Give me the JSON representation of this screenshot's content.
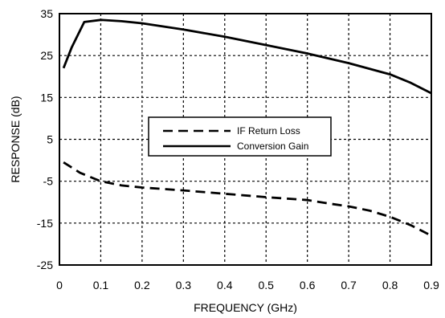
{
  "chart_data": {
    "type": "line",
    "xlabel": "FREQUENCY (GHz)",
    "ylabel": "RESPONSE (dB)",
    "xlim": [
      0,
      0.9
    ],
    "ylim": [
      -25,
      35
    ],
    "xticks": [
      "0",
      "0.1",
      "0.2",
      "0.3",
      "0.4",
      "0.5",
      "0.6",
      "0.7",
      "0.8",
      "0.9"
    ],
    "yticks": [
      "35",
      "25",
      "15",
      "5",
      "-5",
      "-15",
      "-25"
    ],
    "grid": true,
    "legend_position": "center",
    "series": [
      {
        "name": "IF Return Loss",
        "style": "dashed",
        "color": "#000000",
        "x": [
          0.01,
          0.05,
          0.1,
          0.15,
          0.2,
          0.3,
          0.4,
          0.5,
          0.6,
          0.65,
          0.7,
          0.75,
          0.8,
          0.85,
          0.9
        ],
        "y": [
          -0.5,
          -3.0,
          -5.0,
          -6.0,
          -6.5,
          -7.2,
          -8.0,
          -8.8,
          -9.5,
          -10.3,
          -11.0,
          -12.0,
          -13.5,
          -15.5,
          -18.0
        ]
      },
      {
        "name": "Conversion Gain",
        "style": "solid",
        "color": "#000000",
        "x": [
          0.01,
          0.03,
          0.06,
          0.1,
          0.15,
          0.2,
          0.3,
          0.4,
          0.5,
          0.6,
          0.7,
          0.8,
          0.85,
          0.9
        ],
        "y": [
          22.0,
          27.0,
          33.0,
          33.5,
          33.2,
          32.7,
          31.2,
          29.5,
          27.5,
          25.5,
          23.2,
          20.5,
          18.5,
          16.0
        ]
      }
    ]
  }
}
